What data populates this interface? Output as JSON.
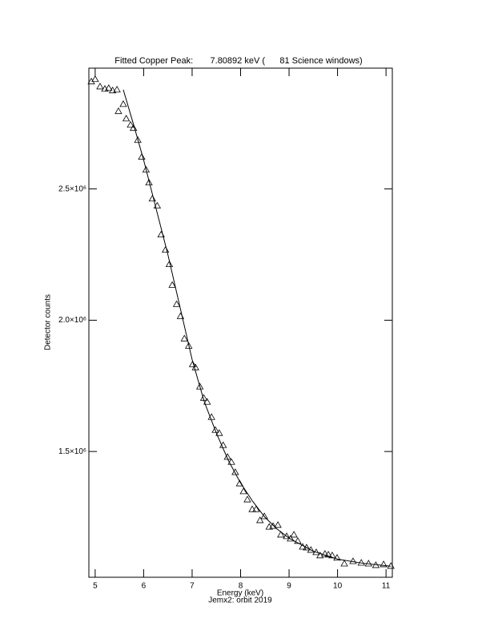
{
  "chart_data": {
    "type": "scatter",
    "title": "Fitted Copper Peak:       7.80892 keV (      81 Science windows)",
    "x_label": "Energy (keV)",
    "subtitle": "Jemx2: orbit 2019",
    "y_label": "Detector counts",
    "xlim": [
      4.87,
      11.13
    ],
    "ylim": [
      1021000,
      2960000
    ],
    "xticks": [
      5,
      6,
      7,
      8,
      9,
      10,
      11
    ],
    "yticks": [
      {
        "value": 1500000,
        "label": "1.5×10⁶"
      },
      {
        "value": 2000000,
        "label": "2.0×10⁶"
      },
      {
        "value": 2500000,
        "label": "2.5×10⁶"
      }
    ],
    "color": "#000000",
    "series": [
      {
        "marker": "triangle",
        "x": [
          4.92,
          5.0,
          5.1,
          5.2,
          5.28,
          5.36,
          5.45,
          5.48,
          5.58,
          5.64,
          5.73,
          5.79,
          5.88,
          5.96,
          6.05,
          6.11,
          6.18,
          6.28,
          6.36,
          6.45,
          6.53,
          6.59,
          6.68,
          6.76,
          6.84,
          6.93,
          7.01,
          7.07,
          7.16,
          7.24,
          7.31,
          7.4,
          7.48,
          7.56,
          7.64,
          7.73,
          7.81,
          7.89,
          7.98,
          8.06,
          8.14,
          8.24,
          8.32,
          8.4,
          8.49,
          8.59,
          8.67,
          8.77,
          8.83,
          8.95,
          9.03,
          9.1,
          9.18,
          9.28,
          9.36,
          9.45,
          9.56,
          9.64,
          9.74,
          9.81,
          9.89,
          9.99,
          10.14,
          10.32,
          10.49,
          10.64,
          10.79,
          10.95,
          11.1
        ],
        "values": [
          2909000,
          2918000,
          2890000,
          2881000,
          2884000,
          2875000,
          2878000,
          2796000,
          2823000,
          2768000,
          2744000,
          2732000,
          2686000,
          2622000,
          2573000,
          2524000,
          2463000,
          2436000,
          2326000,
          2268000,
          2213000,
          2134000,
          2061000,
          2015000,
          1930000,
          1902000,
          1832000,
          1820000,
          1747000,
          1704000,
          1689000,
          1631000,
          1582000,
          1570000,
          1524000,
          1479000,
          1460000,
          1421000,
          1378000,
          1348000,
          1317000,
          1280000,
          1280000,
          1238000,
          1253000,
          1213000,
          1216000,
          1220000,
          1183000,
          1177000,
          1168000,
          1183000,
          1159000,
          1137000,
          1134000,
          1125000,
          1116000,
          1104000,
          1110000,
          1107000,
          1104000,
          1095000,
          1073000,
          1082000,
          1076000,
          1073000,
          1067000,
          1070000,
          1064000
        ]
      },
      {
        "marker": "line",
        "x": [
          5.58,
          5.8,
          6.0,
          6.25,
          6.5,
          6.75,
          7.0,
          7.25,
          7.5,
          7.75,
          8.0,
          8.25,
          8.5,
          8.75,
          9.0,
          9.5,
          10.0,
          10.5,
          11.0,
          11.1
        ],
        "values": [
          2878000,
          2740000,
          2610000,
          2430000,
          2250000,
          2050000,
          1850000,
          1690000,
          1570000,
          1465000,
          1380000,
          1310000,
          1250000,
          1205000,
          1170000,
          1120000,
          1090000,
          1075000,
          1065000,
          1063000
        ]
      }
    ]
  }
}
